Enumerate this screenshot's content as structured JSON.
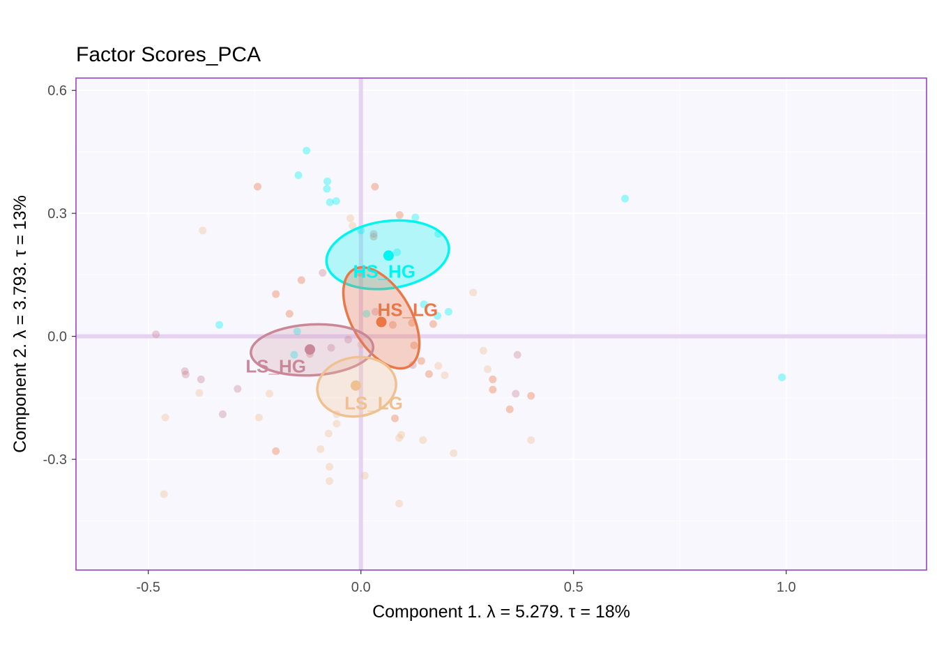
{
  "chart_data": {
    "type": "scatter",
    "title": "Factor Scores_PCA",
    "xlabel": "Component 1.   λ = 5.279.  τ = 18%",
    "ylabel": "Component 2.   λ = 3.793.  τ = 13%",
    "xlim": [
      -0.67,
      1.33
    ],
    "ylim": [
      -0.57,
      0.63
    ],
    "x_ticks": [
      -0.5,
      0.0,
      0.5,
      1.0
    ],
    "x_tick_labels": [
      "-0.5",
      "0.0",
      "0.5",
      "1.0"
    ],
    "y_ticks": [
      -0.3,
      0.0,
      0.3,
      0.6
    ],
    "y_tick_labels": [
      "-0.3",
      "0.0",
      "0.3",
      "0.6"
    ],
    "grid": true,
    "legend": "none",
    "colors": {
      "panel_background": "#f8f7fd",
      "panel_border": "#9a41c6",
      "zero_lines": "#e6d3f2",
      "grid": "#ffffff"
    },
    "groups": [
      {
        "name": "HS_HG",
        "color": "#00f5f0",
        "mean": [
          0.065,
          0.197
        ],
        "label_pos": [
          0.055,
          0.158
        ],
        "ellipse": {
          "cx": 0.063,
          "cy": 0.199,
          "rx": 0.145,
          "ry": 0.082,
          "angle": -8
        },
        "fill_opacity": 0.28,
        "points": [
          [
            -0.128,
            0.453
          ],
          [
            -0.147,
            0.393
          ],
          [
            -0.079,
            0.378
          ],
          [
            -0.08,
            0.36
          ],
          [
            -0.073,
            0.327
          ],
          [
            -0.058,
            0.33
          ],
          [
            0.128,
            0.29
          ],
          [
            0.182,
            0.25
          ],
          [
            0.0,
            0.258
          ],
          [
            0.085,
            0.205
          ],
          [
            0.621,
            0.336
          ],
          [
            0.99,
            -0.1
          ],
          [
            -0.333,
            0.028
          ],
          [
            0.206,
            0.06
          ],
          [
            0.18,
            0.05
          ],
          [
            0.148,
            0.078
          ],
          [
            0.013,
            0.055
          ],
          [
            -0.15,
            0.012
          ],
          [
            -0.157,
            -0.045
          ]
        ]
      },
      {
        "name": "HS_LG",
        "color": "#ea7748",
        "mean": [
          0.048,
          0.035
        ],
        "label_pos": [
          0.11,
          0.065
        ],
        "ellipse": {
          "cx": 0.048,
          "cy": 0.045,
          "rx": 0.07,
          "ry": 0.136,
          "angle": -30
        },
        "fill_opacity": 0.3,
        "points": [
          [
            -0.243,
            0.365
          ],
          [
            0.033,
            0.365
          ],
          [
            0.091,
            0.296
          ],
          [
            0.03,
            0.243
          ],
          [
            -0.2,
            0.103
          ],
          [
            -0.14,
            0.137
          ],
          [
            -0.168,
            0.055
          ],
          [
            -0.003,
            0.155
          ],
          [
            0.12,
            0.033
          ],
          [
            0.075,
            0.028
          ],
          [
            0.125,
            -0.022
          ],
          [
            0.142,
            -0.06
          ],
          [
            0.16,
            -0.092
          ],
          [
            0.31,
            -0.105
          ],
          [
            0.31,
            -0.13
          ],
          [
            0.35,
            -0.178
          ],
          [
            0.4,
            -0.145
          ],
          [
            0.08,
            -0.2
          ],
          [
            -0.2,
            -0.28
          ],
          [
            0.17,
            0.03
          ]
        ]
      },
      {
        "name": "LS_HG",
        "color": "#c98797",
        "mean": [
          -0.12,
          -0.032
        ],
        "label_pos": [
          -0.2,
          -0.073
        ],
        "ellipse": {
          "cx": -0.115,
          "cy": -0.033,
          "rx": 0.144,
          "ry": 0.062,
          "angle": -3
        },
        "fill_opacity": 0.22,
        "points": [
          [
            -0.482,
            0.005
          ],
          [
            -0.414,
            -0.085
          ],
          [
            -0.412,
            -0.093
          ],
          [
            -0.376,
            -0.105
          ],
          [
            -0.29,
            -0.128
          ],
          [
            -0.325,
            -0.19
          ],
          [
            -0.12,
            -0.043
          ],
          [
            -0.07,
            -0.028
          ],
          [
            -0.03,
            -0.008
          ],
          [
            0.03,
            0.25
          ],
          [
            -0.09,
            0.155
          ],
          [
            0.122,
            -0.07
          ],
          [
            0.368,
            -0.045
          ],
          [
            0.364,
            -0.14
          ],
          [
            0.034,
            0.06
          ]
        ]
      },
      {
        "name": "LS_LG",
        "color": "#efc190",
        "mean": [
          -0.012,
          -0.12
        ],
        "label_pos": [
          0.03,
          -0.163
        ],
        "ellipse": {
          "cx": -0.01,
          "cy": -0.123,
          "rx": 0.093,
          "ry": 0.072,
          "angle": -8
        },
        "fill_opacity": 0.28,
        "points": [
          [
            -0.372,
            0.258
          ],
          [
            -0.02,
            0.27
          ],
          [
            -0.025,
            0.288
          ],
          [
            -0.46,
            -0.198
          ],
          [
            -0.38,
            -0.138
          ],
          [
            -0.24,
            -0.198
          ],
          [
            -0.215,
            -0.14
          ],
          [
            -0.057,
            -0.19
          ],
          [
            -0.057,
            -0.213
          ],
          [
            -0.076,
            -0.237
          ],
          [
            -0.095,
            -0.275
          ],
          [
            -0.074,
            -0.318
          ],
          [
            -0.074,
            -0.353
          ],
          [
            0.009,
            -0.34
          ],
          [
            0.09,
            -0.248
          ],
          [
            0.095,
            -0.24
          ],
          [
            0.146,
            -0.253
          ],
          [
            0.218,
            -0.285
          ],
          [
            0.288,
            -0.035
          ],
          [
            0.298,
            -0.08
          ],
          [
            0.182,
            -0.072
          ],
          [
            0.197,
            -0.095
          ],
          [
            0.264,
            0.107
          ],
          [
            0.4,
            -0.253
          ],
          [
            0.09,
            -0.408
          ],
          [
            -0.463,
            -0.385
          ],
          [
            0.0,
            -0.02
          ]
        ]
      }
    ]
  }
}
